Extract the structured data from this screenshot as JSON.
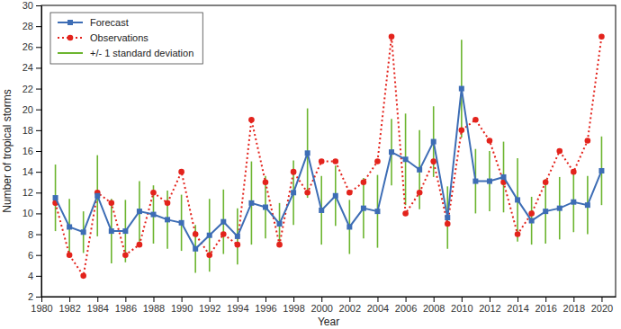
{
  "chart_data": {
    "type": "line",
    "x_label": "Year",
    "y_label": "Number of tropical storms",
    "x": [
      1981,
      1982,
      1983,
      1984,
      1985,
      1986,
      1987,
      1988,
      1989,
      1990,
      1991,
      1992,
      1993,
      1994,
      1995,
      1996,
      1997,
      1998,
      1999,
      2000,
      2001,
      2002,
      2003,
      2004,
      2005,
      2006,
      2007,
      2008,
      2009,
      2010,
      2011,
      2012,
      2013,
      2014,
      2015,
      2016,
      2017,
      2018,
      2019,
      2020
    ],
    "xlim": [
      1980,
      2021
    ],
    "xticks": [
      1980,
      1982,
      1984,
      1986,
      1988,
      1990,
      1992,
      1994,
      1996,
      1998,
      2000,
      2002,
      2004,
      2006,
      2008,
      2010,
      2012,
      2014,
      2016,
      2018,
      2020
    ],
    "ylim": [
      2,
      30
    ],
    "yticks": [
      2,
      4,
      6,
      8,
      10,
      12,
      14,
      16,
      18,
      20,
      22,
      24,
      26,
      28,
      30
    ],
    "grid": false,
    "legend": "top-left",
    "series": [
      {
        "name": "Forecast",
        "color": "#3d6db5",
        "marker": "square",
        "line_style": "solid",
        "values": [
          11.5,
          8.7,
          8.2,
          11.7,
          8.3,
          8.3,
          10.2,
          9.9,
          9.4,
          9.1,
          6.6,
          7.9,
          9.2,
          7.8,
          11.0,
          10.6,
          9.0,
          12.0,
          15.8,
          10.3,
          11.7,
          8.7,
          10.5,
          10.2,
          15.9,
          15.2,
          14.2,
          16.9,
          9.6,
          22.0,
          13.1,
          13.1,
          13.5,
          11.3,
          9.3,
          10.2,
          10.5,
          11.1,
          10.8,
          14.1
        ],
        "error": [
          3.2,
          2.7,
          2.0,
          3.9,
          3.1,
          3.0,
          2.9,
          2.8,
          2.8,
          2.7,
          2.3,
          3.5,
          3.1,
          2.7,
          4.0,
          3.0,
          2.0,
          3.1,
          4.3,
          3.3,
          2.9,
          2.6,
          2.9,
          3.5,
          3.2,
          4.4,
          3.8,
          3.4,
          3.0,
          4.7,
          3.1,
          2.9,
          3.4,
          4.0,
          2.3,
          3.1,
          3.0,
          2.9,
          2.8,
          3.3
        ],
        "error_name": "+/- 1 standard deviation",
        "error_color": "#6cb52f"
      },
      {
        "name": "Observations",
        "color": "#e3231c",
        "marker": "circle",
        "line_style": "dotted",
        "values": [
          11,
          6,
          4,
          12,
          11,
          6,
          7,
          12,
          11,
          14,
          8,
          6,
          8,
          7,
          19,
          13,
          7,
          14,
          12,
          15,
          15,
          12,
          13,
          15,
          27,
          10,
          12,
          15,
          9,
          18,
          19,
          17,
          13,
          8,
          10,
          13,
          16,
          14,
          17,
          27
        ]
      }
    ]
  }
}
